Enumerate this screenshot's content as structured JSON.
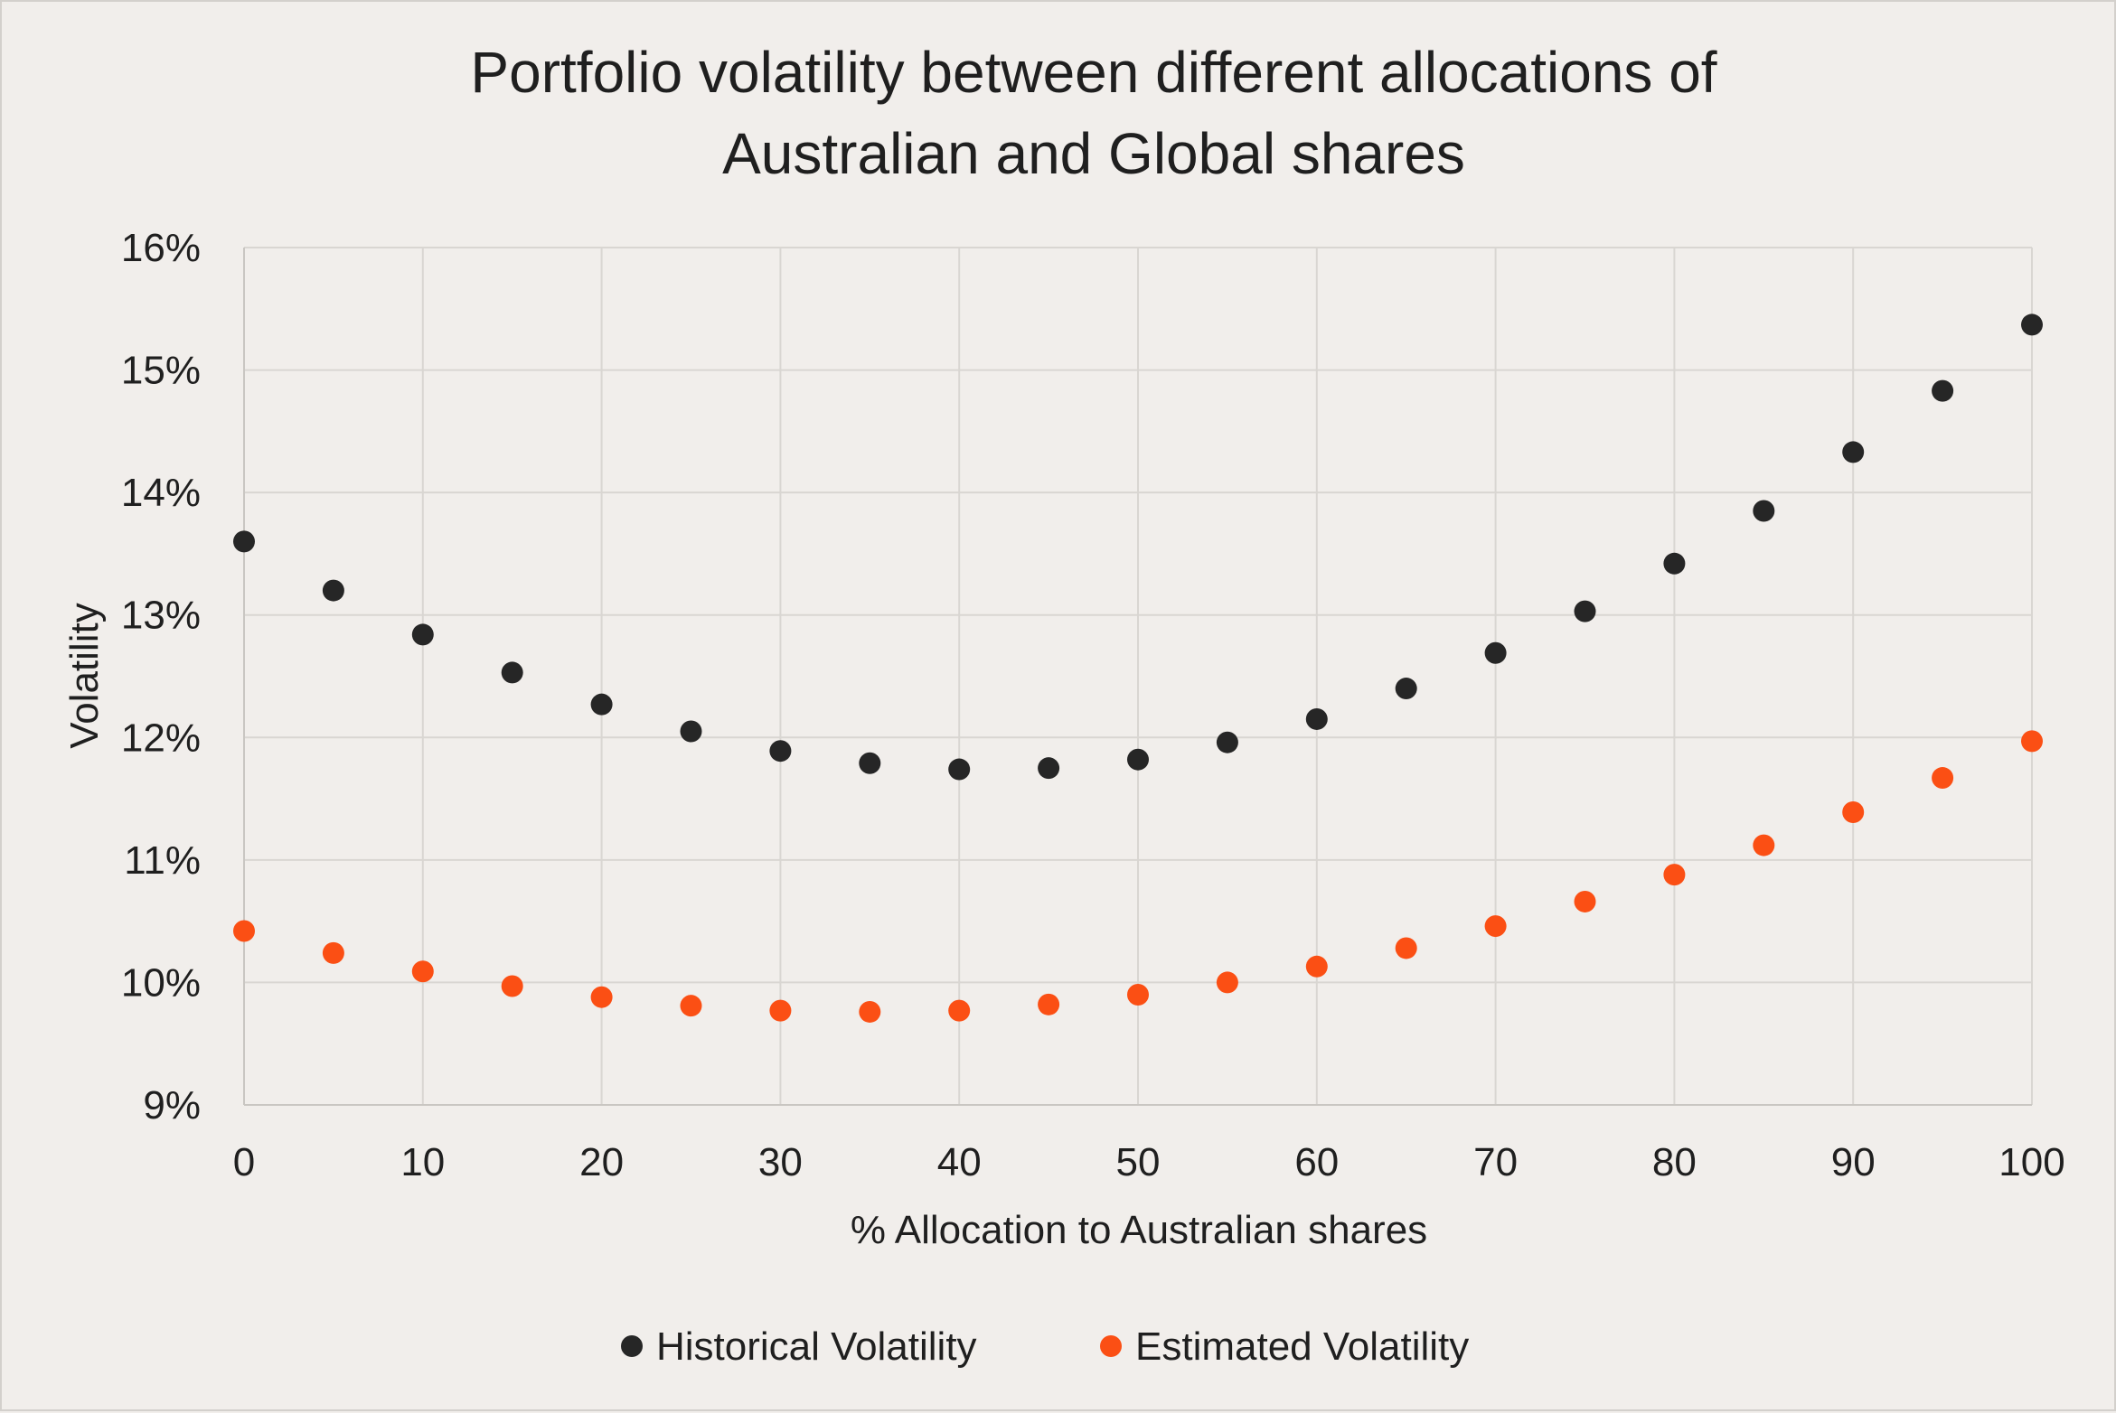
{
  "chart_data": {
    "type": "scatter",
    "title": [
      "Portfolio volatility between different allocations of",
      "Australian and Global shares"
    ],
    "xlabel": "% Allocation to Australian shares",
    "ylabel": "Volatility",
    "xlim": [
      0,
      100
    ],
    "ylim": [
      9,
      16
    ],
    "x_ticks": [
      0,
      10,
      20,
      30,
      40,
      50,
      60,
      70,
      80,
      90,
      100
    ],
    "y_ticks": [
      9,
      10,
      11,
      12,
      13,
      14,
      15,
      16
    ],
    "y_tick_suffix": "%",
    "grid": true,
    "legend_position": "bottom",
    "x": [
      0,
      5,
      10,
      15,
      20,
      25,
      30,
      35,
      40,
      45,
      50,
      55,
      60,
      65,
      70,
      75,
      80,
      85,
      90,
      95,
      100
    ],
    "series": [
      {
        "name": "Historical Volatility",
        "color": "#262626",
        "values": [
          13.6,
          13.2,
          12.84,
          12.53,
          12.27,
          12.05,
          11.89,
          11.79,
          11.74,
          11.75,
          11.82,
          11.96,
          12.15,
          12.4,
          12.69,
          13.03,
          13.42,
          13.85,
          14.33,
          14.83,
          15.37
        ]
      },
      {
        "name": "Estimated Volatility",
        "color": "#fb4f14",
        "values": [
          10.42,
          10.24,
          10.09,
          9.97,
          9.88,
          9.81,
          9.77,
          9.76,
          9.77,
          9.82,
          9.9,
          10.0,
          10.13,
          10.28,
          10.46,
          10.66,
          10.88,
          11.12,
          11.39,
          11.67,
          11.97
        ]
      }
    ]
  }
}
